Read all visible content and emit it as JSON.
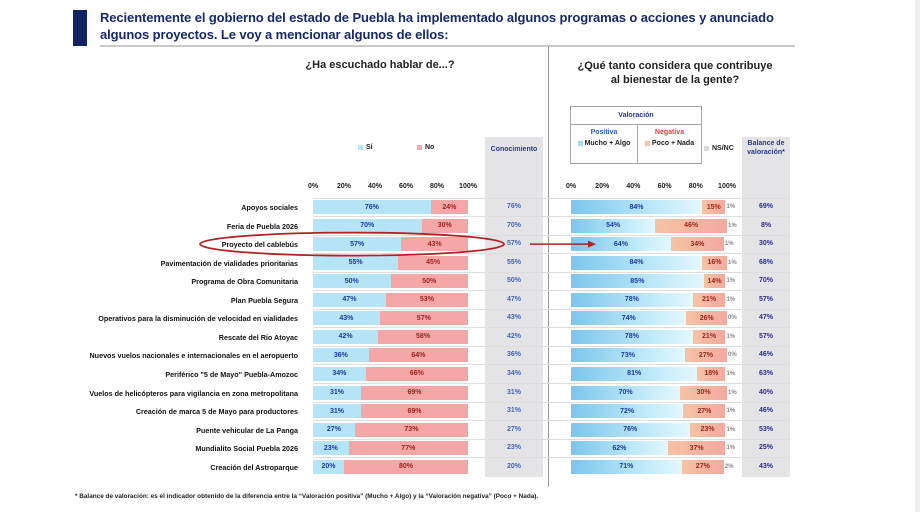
{
  "header": {
    "title_line1": "Recientemente el gobierno del estado de Puebla ha implementado algunos programas o acciones y anunciado",
    "title_line2": "algunos proyectos. Le voy a mencionar algunos de ellos:"
  },
  "left_panel": {
    "question": "¿Ha escuchado hablar de...?",
    "legend": [
      {
        "label": "Sí",
        "color": "#b5e4f6"
      },
      {
        "label": "No",
        "color": "#f5a7a7"
      }
    ],
    "column_header": "Conocimiento"
  },
  "right_panel": {
    "question_line1": "¿Qué tanto considera que contribuye",
    "question_line2": "al bienestar de la gente?",
    "valoracion_header": "Valoración",
    "positiva_label": "Positiva",
    "positiva_legend": "Mucho + Algo",
    "negativa_label": "Negativa",
    "negativa_legend": "Poco + Nada",
    "nsnc_legend": "NS/NC",
    "balance_header_line1": "Balance de",
    "balance_header_line2": "valoración*",
    "colors": {
      "positiva": "#7cc6ec",
      "negativa": "#f3a9a1",
      "nsnc": "#d9d9d9",
      "positiva_text": "#2f5fd0",
      "negativa_text": "#e0403a"
    }
  },
  "highlight": {
    "row_index": 2,
    "color": "#b22222"
  },
  "footnote": "* Balance de valoración: es el indicador obtenido de la diferencia entre la “Valoración positiva” (Mucho + Algo) y la “Valoración negativa” (Poco + Nada).",
  "chart_data": [
    {
      "type": "bar",
      "stacked": true,
      "orientation": "horizontal",
      "title": "¿Ha escuchado hablar de...?",
      "xlim": [
        0,
        100
      ],
      "ticks": [
        "0%",
        "20%",
        "40%",
        "60%",
        "80%",
        "100%"
      ],
      "legend_position": "top",
      "categories": [
        "Apoyos sociales",
        "Feria de Puebla 2026",
        "Proyecto del cablebús",
        "Pavimentación de vialidades prioritarias",
        "Programa de Obra Comunitaria",
        "Plan Puebla Segura",
        "Operativos para la disminución de velocidad en vialidades",
        "Rescate del Río Atoyac",
        "Nuevos vuelos nacionales e internacionales en el aeropuerto",
        "Periférico \"5 de Mayo\" Puebla-Amozoc",
        "Vuelos de helicópteros para vigilancia en zona metropolitana",
        "Creación de marca 5 de Mayo para productores",
        "Puente vehicular de La Panga",
        "Mundialito Social Puebla 2026",
        "Creación del Astroparque"
      ],
      "series": [
        {
          "name": "Sí",
          "values": [
            76,
            70,
            57,
            55,
            50,
            47,
            43,
            42,
            36,
            34,
            31,
            31,
            27,
            23,
            20
          ]
        },
        {
          "name": "No",
          "values": [
            24,
            30,
            43,
            45,
            50,
            53,
            57,
            58,
            64,
            66,
            69,
            69,
            73,
            77,
            80
          ]
        }
      ],
      "conocimiento": [
        76,
        70,
        57,
        55,
        50,
        47,
        43,
        42,
        36,
        34,
        31,
        31,
        27,
        23,
        20
      ]
    },
    {
      "type": "bar",
      "stacked": true,
      "orientation": "horizontal",
      "title": "¿Qué tanto considera que contribuye al bienestar de la gente?",
      "xlim": [
        0,
        100
      ],
      "ticks": [
        "0%",
        "20%",
        "40%",
        "60%",
        "80%",
        "100%"
      ],
      "legend_position": "top",
      "series": [
        {
          "name": "Mucho + Algo",
          "values": [
            84,
            54,
            64,
            84,
            85,
            78,
            74,
            78,
            73,
            81,
            70,
            72,
            76,
            62,
            71
          ]
        },
        {
          "name": "Poco + Nada",
          "values": [
            15,
            46,
            34,
            16,
            14,
            21,
            26,
            21,
            27,
            18,
            30,
            27,
            23,
            37,
            27
          ]
        },
        {
          "name": "NS/NC",
          "values": [
            1,
            1,
            1,
            1,
            1,
            1,
            0,
            1,
            0,
            1,
            1,
            1,
            1,
            1,
            2
          ]
        }
      ],
      "balance_valoracion": [
        69,
        8,
        30,
        68,
        70,
        57,
        47,
        57,
        46,
        63,
        40,
        46,
        53,
        25,
        43
      ]
    }
  ]
}
